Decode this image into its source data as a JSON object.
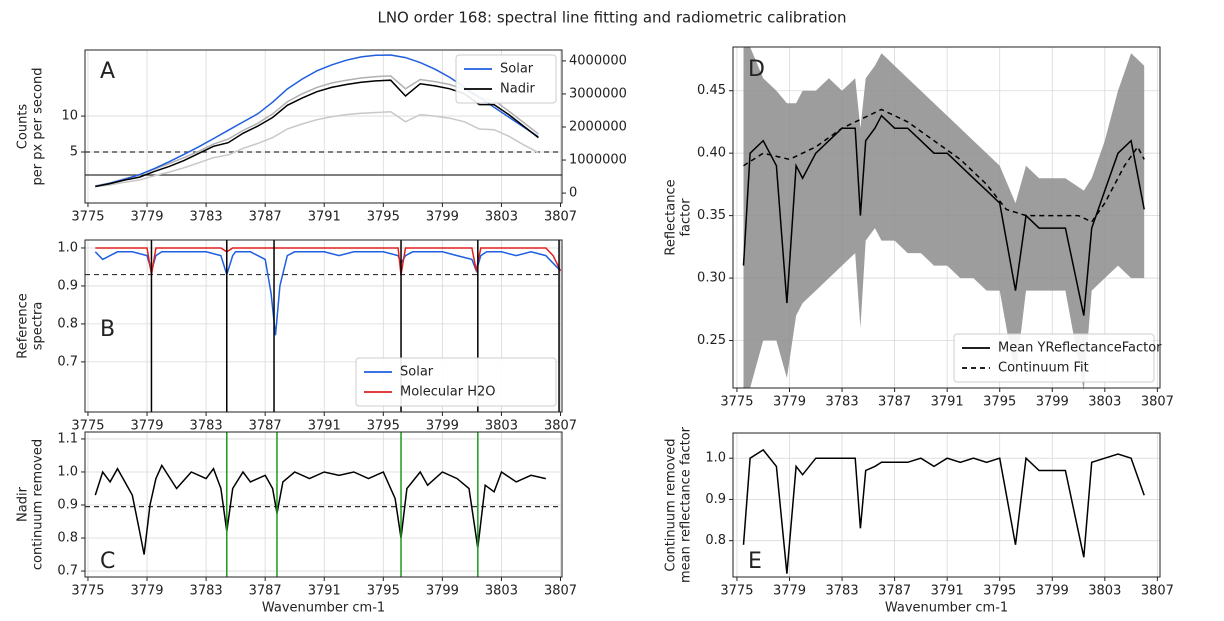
{
  "title": "LNO order 168: spectral line fitting and radiometric calibration",
  "chart_data": [
    {
      "type": "line",
      "label": "A",
      "ylabel": [
        "Counts",
        "per px per second"
      ],
      "x": [
        3775.5,
        3776.5,
        3777.5,
        3778.5,
        3779.5,
        3780.5,
        3781.5,
        3782.5,
        3783.5,
        3784.5,
        3785.5,
        3786.5,
        3787.5,
        3788.5,
        3789.5,
        3790.5,
        3791.5,
        3792.5,
        3793.5,
        3794.5,
        3795.5,
        3796.5,
        3797.5,
        3798.5,
        3799.5,
        3800.5,
        3801.5,
        3802.5,
        3803.5,
        3804.5,
        3805.5
      ],
      "series": [
        {
          "color": "#b0b0b0",
          "values": [
            0.3,
            0.7,
            1.3,
            1.8,
            2.6,
            3.4,
            4.2,
            5.1,
            6.1,
            6.8,
            8.0,
            9.0,
            10.3,
            12.0,
            13.1,
            14.0,
            14.6,
            15.0,
            15.3,
            15.5,
            15.6,
            13.8,
            15.1,
            14.8,
            14.4,
            13.7,
            12.5,
            12.2,
            10.7,
            9.1,
            7.5
          ]
        },
        {
          "color": "#c8c8c8",
          "values": [
            0.2,
            0.4,
            0.8,
            1.1,
            1.7,
            2.2,
            2.8,
            3.5,
            4.2,
            4.6,
            5.5,
            6.2,
            7.0,
            8.2,
            8.9,
            9.5,
            9.9,
            10.2,
            10.4,
            10.5,
            10.6,
            9.2,
            10.2,
            10.0,
            9.7,
            9.2,
            8.2,
            8.1,
            7.2,
            6.0,
            4.9
          ]
        },
        {
          "name": "Solar",
          "color": "#1f5fe0",
          "axis": "y2",
          "values": [
            200000,
            300000,
            420000,
            560000,
            740000,
            950000,
            1170000,
            1400000,
            1650000,
            1900000,
            2150000,
            2400000,
            2750000,
            3150000,
            3450000,
            3700000,
            3880000,
            4020000,
            4120000,
            4170000,
            4180000,
            4100000,
            3950000,
            3750000,
            3500000,
            3200000,
            2900000,
            2600000,
            2300000,
            2000000,
            1700000
          ]
        },
        {
          "name": "Nadir",
          "color": "#000000",
          "values": [
            0.2,
            0.6,
            1.1,
            1.5,
            2.3,
            3.0,
            3.8,
            4.8,
            5.8,
            6.3,
            7.6,
            8.6,
            9.8,
            11.5,
            12.5,
            13.4,
            14.0,
            14.4,
            14.7,
            14.9,
            15.0,
            12.8,
            14.5,
            14.2,
            13.8,
            13.1,
            11.6,
            11.6,
            10.2,
            8.6,
            7.0
          ]
        }
      ],
      "xlim": [
        3774.8,
        3807.1
      ],
      "xticks": [
        3775,
        3779,
        3783,
        3787,
        3791,
        3795,
        3799,
        3803,
        3807
      ],
      "ylim": [
        -2.1,
        19.2
      ],
      "yticks": [
        5,
        10
      ],
      "y2lim": [
        -300000,
        4330000
      ],
      "y2ticks": [
        0,
        1000000,
        2000000,
        3000000,
        4000000
      ],
      "hlines": [
        {
          "value": 5,
          "style": "dashed"
        },
        {
          "value": 1.8,
          "style": "solid"
        }
      ],
      "grid": true,
      "legend": "upper right"
    },
    {
      "type": "line",
      "label": "B",
      "ylabel": [
        "Reference",
        "spectra"
      ],
      "x": [
        3775.5,
        3776,
        3776.5,
        3777,
        3778,
        3779,
        3779.3,
        3779.6,
        3780,
        3781,
        3782,
        3783,
        3784,
        3784.4,
        3784.8,
        3785,
        3786,
        3787,
        3787.4,
        3787.7,
        3788,
        3788.5,
        3789,
        3790,
        3791,
        3792,
        3793,
        3794,
        3795,
        3796,
        3796.2,
        3796.5,
        3797,
        3798,
        3799,
        3800,
        3801,
        3801.3,
        3801.6,
        3802,
        3803,
        3804,
        3805,
        3806,
        3806.5,
        3807
      ],
      "series": [
        {
          "name": "Solar",
          "color": "#1f5fe0",
          "values": [
            0.99,
            0.97,
            0.98,
            0.99,
            0.99,
            0.98,
            0.94,
            0.98,
            0.99,
            0.99,
            0.99,
            0.99,
            0.98,
            0.93,
            0.98,
            0.99,
            0.99,
            0.97,
            0.88,
            0.77,
            0.9,
            0.98,
            0.99,
            0.99,
            0.99,
            0.98,
            0.99,
            0.99,
            0.99,
            0.98,
            0.96,
            0.98,
            0.99,
            0.99,
            0.99,
            0.98,
            0.97,
            0.94,
            0.98,
            0.99,
            0.99,
            0.98,
            0.99,
            0.98,
            0.96,
            0.94
          ]
        },
        {
          "name": "Molecular H2O",
          "color": "#e02020",
          "values": [
            1,
            1,
            1,
            1,
            1,
            1,
            0.93,
            1,
            1,
            1,
            1,
            1,
            1,
            0.99,
            1,
            1,
            1,
            1,
            1,
            1,
            1,
            1,
            1,
            1,
            1,
            1,
            1,
            1,
            1,
            1,
            0.93,
            1,
            1,
            1,
            1,
            1,
            1,
            0.94,
            1,
            1,
            1,
            1,
            1,
            1,
            0.98,
            0.94
          ]
        }
      ],
      "xlim": [
        3774.8,
        3807.1
      ],
      "xticks": [
        3775,
        3779,
        3783,
        3787,
        3791,
        3795,
        3799,
        3803,
        3807
      ],
      "ylim": [
        0.568,
        1.021
      ],
      "yticks": [
        0.7,
        0.8,
        0.9,
        {
          "value": 1,
          "label": "1.0"
        }
      ],
      "hlines": [
        {
          "value": 0.93,
          "style": "dashed"
        }
      ],
      "vlines": [
        3779.3,
        3784.4,
        3787.6,
        3796.2,
        3801.4,
        3806.9
      ],
      "vline_color": "#000000",
      "grid": true,
      "legend": "lower right"
    },
    {
      "type": "line",
      "label": "C",
      "ylabel": [
        "Nadir",
        "continuum removed"
      ],
      "xlabel": "Wavenumber cm-1",
      "x": [
        3775.5,
        3776,
        3776.5,
        3777,
        3777.5,
        3778,
        3778.5,
        3778.8,
        3779.2,
        3779.6,
        3780,
        3781,
        3782,
        3783,
        3783.5,
        3784,
        3784.4,
        3784.8,
        3785.5,
        3786,
        3787,
        3787.5,
        3787.8,
        3788.2,
        3789,
        3790,
        3791,
        3792,
        3793,
        3794,
        3795,
        3795.8,
        3796.2,
        3796.6,
        3797.5,
        3798,
        3799,
        3800,
        3800.8,
        3801.4,
        3801.9,
        3802.5,
        3803,
        3804,
        3805,
        3806
      ],
      "series": [
        {
          "color": "#000000",
          "values": [
            0.93,
            1.0,
            0.97,
            1.01,
            0.97,
            0.93,
            0.82,
            0.75,
            0.9,
            0.98,
            1.02,
            0.95,
            1.0,
            0.98,
            1.01,
            0.95,
            0.82,
            0.95,
            1.0,
            0.97,
            0.99,
            0.95,
            0.875,
            0.97,
            1.0,
            0.98,
            1.0,
            0.99,
            1.0,
            0.98,
            1.0,
            0.92,
            0.8,
            0.95,
            1.0,
            0.96,
            1.0,
            0.98,
            0.95,
            0.77,
            0.96,
            0.94,
            1.0,
            0.97,
            0.99,
            0.98
          ]
        }
      ],
      "xlim": [
        3774.8,
        3807.1
      ],
      "xticks": [
        3775,
        3779,
        3783,
        3787,
        3791,
        3795,
        3799,
        3803,
        3807
      ],
      "ylim": [
        0.682,
        1.121
      ],
      "yticks": [
        0.7,
        0.8,
        0.9,
        {
          "value": 1,
          "label": "1.0"
        },
        1.1
      ],
      "hlines": [
        {
          "value": 0.895,
          "style": "dashed"
        }
      ],
      "vlines": [
        3784.4,
        3787.8,
        3796.2,
        3801.4
      ],
      "vline_color": "#1a9a1a",
      "grid": true
    },
    {
      "type": "line",
      "label": "D",
      "ylabel": [
        "Reflectance",
        "factor"
      ],
      "x": [
        3775.5,
        3776,
        3777,
        3778,
        3778.8,
        3779.5,
        3780,
        3781,
        3782,
        3783,
        3784,
        3784.4,
        3784.8,
        3785.5,
        3786,
        3787,
        3788,
        3789,
        3790,
        3791,
        3792,
        3793,
        3794,
        3795,
        3796.2,
        3797,
        3798,
        3799,
        3800,
        3801.4,
        3802,
        3803,
        3804,
        3805,
        3806
      ],
      "band": {
        "color": "#8c8c8c",
        "upper": [
          0.485,
          0.485,
          0.46,
          0.45,
          0.44,
          0.44,
          0.45,
          0.45,
          0.46,
          0.45,
          0.46,
          0.42,
          0.46,
          0.47,
          0.48,
          0.47,
          0.46,
          0.45,
          0.44,
          0.43,
          0.42,
          0.41,
          0.4,
          0.39,
          0.36,
          0.39,
          0.38,
          0.38,
          0.38,
          0.37,
          0.38,
          0.41,
          0.45,
          0.48,
          0.47
        ],
        "lower": [
          0.212,
          0.212,
          0.25,
          0.25,
          0.22,
          0.27,
          0.28,
          0.29,
          0.3,
          0.31,
          0.32,
          0.26,
          0.33,
          0.34,
          0.33,
          0.33,
          0.32,
          0.32,
          0.31,
          0.31,
          0.3,
          0.3,
          0.29,
          0.29,
          0.22,
          0.29,
          0.29,
          0.29,
          0.29,
          0.21,
          0.29,
          0.3,
          0.31,
          0.3,
          0.3
        ]
      },
      "series": [
        {
          "name": "Mean YReflectanceFactor",
          "color": "#000000",
          "values": [
            0.31,
            0.4,
            0.41,
            0.39,
            0.28,
            0.39,
            0.38,
            0.4,
            0.41,
            0.42,
            0.42,
            0.35,
            0.41,
            0.42,
            0.43,
            0.42,
            0.42,
            0.41,
            0.4,
            0.4,
            0.39,
            0.38,
            0.37,
            0.36,
            0.29,
            0.35,
            0.34,
            0.34,
            0.34,
            0.27,
            0.34,
            0.37,
            0.4,
            0.41,
            0.355
          ]
        },
        {
          "name": "Continuum Fit",
          "color": "#000000",
          "linestyle": "dashed",
          "x": [
            3775.5,
            3777,
            3779,
            3781,
            3783,
            3785,
            3786,
            3788,
            3790,
            3792,
            3794,
            3795.5,
            3797,
            3799,
            3801,
            3802,
            3803,
            3804.5,
            3805.5,
            3806
          ],
          "values": [
            0.39,
            0.4,
            0.395,
            0.405,
            0.42,
            0.43,
            0.435,
            0.425,
            0.41,
            0.395,
            0.375,
            0.355,
            0.35,
            0.35,
            0.35,
            0.345,
            0.36,
            0.39,
            0.405,
            0.395
          ]
        }
      ],
      "xlim": [
        3774.7,
        3807.2
      ],
      "xticks": [
        3775,
        3779,
        3783,
        3787,
        3791,
        3795,
        3799,
        3803,
        3807
      ],
      "ylim": [
        0.212,
        0.485
      ],
      "yticks": [
        0.25,
        {
          "value": 0.3,
          "label": "0.30"
        },
        0.35,
        {
          "value": 0.4,
          "label": "0.40"
        },
        0.45
      ],
      "grid": true,
      "legend": "lower right"
    },
    {
      "type": "line",
      "label": "E",
      "ylabel": [
        "Continuum removed",
        "mean reflectance factor"
      ],
      "xlabel": "Wavenumber cm-1",
      "x": [
        3775.5,
        3776,
        3777,
        3778,
        3778.8,
        3779.5,
        3780,
        3781,
        3782,
        3783,
        3784,
        3784.4,
        3784.8,
        3785.5,
        3786,
        3787,
        3788,
        3789,
        3790,
        3791,
        3792,
        3793,
        3794,
        3795,
        3796.2,
        3797,
        3798,
        3799,
        3800,
        3801.4,
        3802,
        3803,
        3804,
        3805,
        3806
      ],
      "series": [
        {
          "color": "#000000",
          "values": [
            0.79,
            1.0,
            1.02,
            0.98,
            0.72,
            0.98,
            0.96,
            1.0,
            1.0,
            1.0,
            1.0,
            0.83,
            0.97,
            0.98,
            0.99,
            0.99,
            0.99,
            1.0,
            0.98,
            1.0,
            0.99,
            1.0,
            0.99,
            1.0,
            0.79,
            1.0,
            0.97,
            0.97,
            0.97,
            0.76,
            0.99,
            1.0,
            1.01,
            1.0,
            0.91
          ]
        }
      ],
      "xlim": [
        3774.7,
        3807.2
      ],
      "xticks": [
        3775,
        3779,
        3783,
        3787,
        3791,
        3795,
        3799,
        3803,
        3807
      ],
      "ylim": [
        0.712,
        1.061
      ],
      "yticks": [
        0.8,
        0.9,
        {
          "value": 1,
          "label": "1.0"
        }
      ],
      "grid": true
    }
  ]
}
